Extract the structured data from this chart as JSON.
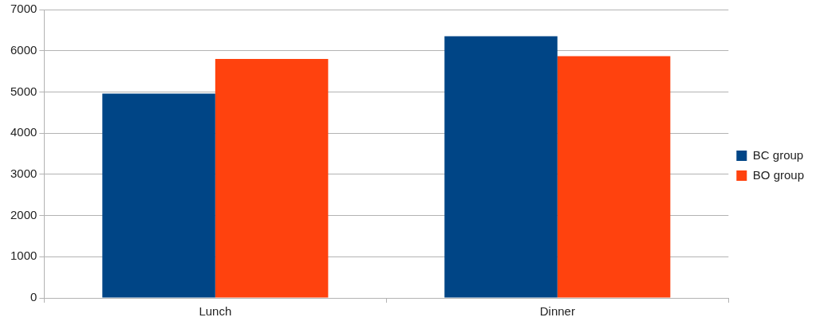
{
  "chart_data": {
    "type": "bar",
    "categories": [
      "Lunch",
      "Dinner"
    ],
    "series": [
      {
        "name": "BC group",
        "color": "#004586",
        "values": [
          4960,
          6350
        ]
      },
      {
        "name": "BO group",
        "color": "#ff420e",
        "values": [
          5800,
          5870
        ]
      }
    ],
    "ylim": [
      0,
      7000
    ],
    "yticks": [
      0,
      1000,
      2000,
      3000,
      4000,
      5000,
      6000,
      7000
    ],
    "grid": "y",
    "legend": "right"
  }
}
